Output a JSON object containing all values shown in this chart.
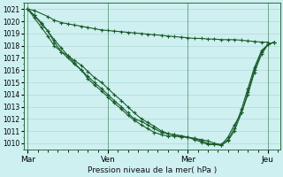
{
  "background_color": "#cef0f0",
  "grid_major_color": "#b0d8d8",
  "grid_minor_color": "#d8f0f0",
  "line_color": "#1a5c2a",
  "xlabel": "Pression niveau de la mer( hPa )",
  "ylim": [
    1009.5,
    1021.5
  ],
  "yticks": [
    1010,
    1011,
    1012,
    1013,
    1014,
    1015,
    1016,
    1017,
    1018,
    1019,
    1020,
    1021
  ],
  "xtick_labels": [
    "Mar",
    "Ven",
    "Mer",
    "Jeu"
  ],
  "n_days": 4,
  "figsize": [
    3.2,
    2.0
  ],
  "dpi": 100,
  "series": [
    {
      "x": [
        0,
        0.08,
        0.25,
        0.33,
        0.42,
        0.5,
        0.58,
        0.67,
        0.75,
        0.83,
        0.92,
        1.0,
        1.08,
        1.17,
        1.25,
        1.33,
        1.42,
        1.5,
        1.58,
        1.67,
        1.75,
        1.83,
        1.92,
        2.0,
        2.08,
        2.17,
        2.25,
        2.33,
        2.42,
        2.5,
        2.58,
        2.67,
        2.75,
        2.83,
        2.92,
        3.0
      ],
      "y": [
        1021.0,
        1020.9,
        1020.4,
        1020.1,
        1019.9,
        1019.8,
        1019.7,
        1019.6,
        1019.5,
        1019.4,
        1019.3,
        1019.25,
        1019.2,
        1019.15,
        1019.1,
        1019.05,
        1019.0,
        1018.95,
        1018.9,
        1018.85,
        1018.8,
        1018.75,
        1018.7,
        1018.65,
        1018.6,
        1018.6,
        1018.55,
        1018.55,
        1018.5,
        1018.5,
        1018.5,
        1018.45,
        1018.4,
        1018.35,
        1018.3,
        1018.3
      ]
    },
    {
      "x": [
        0,
        0.08,
        0.17,
        0.25,
        0.33,
        0.42,
        0.5,
        0.58,
        0.67,
        0.75,
        0.83,
        0.92,
        1.0,
        1.08,
        1.17,
        1.25,
        1.33,
        1.42,
        1.5,
        1.58,
        1.67,
        1.75,
        1.83,
        1.92,
        2.0,
        2.08,
        2.17,
        2.25,
        2.33,
        2.42,
        2.5,
        2.58,
        2.67,
        2.75,
        2.83,
        2.92,
        3.0,
        3.08
      ],
      "y": [
        1021.0,
        1020.5,
        1019.8,
        1019.2,
        1018.5,
        1017.8,
        1017.2,
        1016.6,
        1016.0,
        1015.5,
        1015.0,
        1014.5,
        1014.0,
        1013.5,
        1013.0,
        1012.5,
        1012.0,
        1011.8,
        1011.5,
        1011.2,
        1010.9,
        1010.8,
        1010.7,
        1010.6,
        1010.5,
        1010.4,
        1010.3,
        1010.2,
        1010.0,
        1009.9,
        1010.5,
        1011.5,
        1012.5,
        1014.0,
        1015.8,
        1017.3,
        1018.1,
        1018.3
      ]
    },
    {
      "x": [
        0,
        0.08,
        0.17,
        0.25,
        0.33,
        0.42,
        0.5,
        0.58,
        0.67,
        0.75,
        0.83,
        0.92,
        1.0,
        1.08,
        1.17,
        1.25,
        1.33,
        1.42,
        1.5,
        1.58,
        1.67,
        1.75,
        1.83,
        1.92,
        2.0,
        2.08,
        2.17,
        2.25,
        2.33,
        2.42,
        2.5,
        2.58,
        2.67,
        2.75,
        2.83,
        2.92,
        3.0,
        3.08
      ],
      "y": [
        1021.0,
        1020.3,
        1019.5,
        1018.8,
        1018.0,
        1017.5,
        1017.2,
        1016.8,
        1016.4,
        1015.9,
        1015.4,
        1015.0,
        1014.5,
        1014.0,
        1013.5,
        1013.0,
        1012.5,
        1012.0,
        1011.7,
        1011.4,
        1011.0,
        1010.8,
        1010.7,
        1010.6,
        1010.5,
        1010.3,
        1010.1,
        1009.9,
        1009.9,
        1009.85,
        1010.2,
        1011.0,
        1012.5,
        1014.2,
        1016.0,
        1017.5,
        1018.1,
        1018.3
      ]
    },
    {
      "x": [
        0,
        0.08,
        0.17,
        0.25,
        0.33,
        0.42,
        0.5,
        0.58,
        0.67,
        0.75,
        0.83,
        0.92,
        1.0,
        1.08,
        1.17,
        1.25,
        1.33,
        1.42,
        1.5,
        1.58,
        1.67,
        1.75,
        1.83,
        1.92,
        2.0,
        2.08,
        2.17,
        2.25,
        2.33,
        2.42,
        2.5,
        2.58,
        2.67,
        2.75,
        2.83,
        2.92,
        3.0,
        3.08
      ],
      "y": [
        1021.0,
        1020.5,
        1019.9,
        1019.2,
        1018.3,
        1017.5,
        1017.0,
        1016.5,
        1016.0,
        1015.3,
        1014.8,
        1014.3,
        1013.8,
        1013.3,
        1012.8,
        1012.3,
        1011.9,
        1011.5,
        1011.2,
        1010.9,
        1010.7,
        1010.6,
        1010.6,
        1010.5,
        1010.5,
        1010.4,
        1010.2,
        1010.0,
        1009.9,
        1009.85,
        1010.3,
        1011.2,
        1012.8,
        1014.5,
        1016.2,
        1017.6,
        1018.1,
        1018.3
      ]
    }
  ],
  "vlines": [
    0,
    1,
    2,
    3
  ],
  "spine_color": "#2d6e3e"
}
